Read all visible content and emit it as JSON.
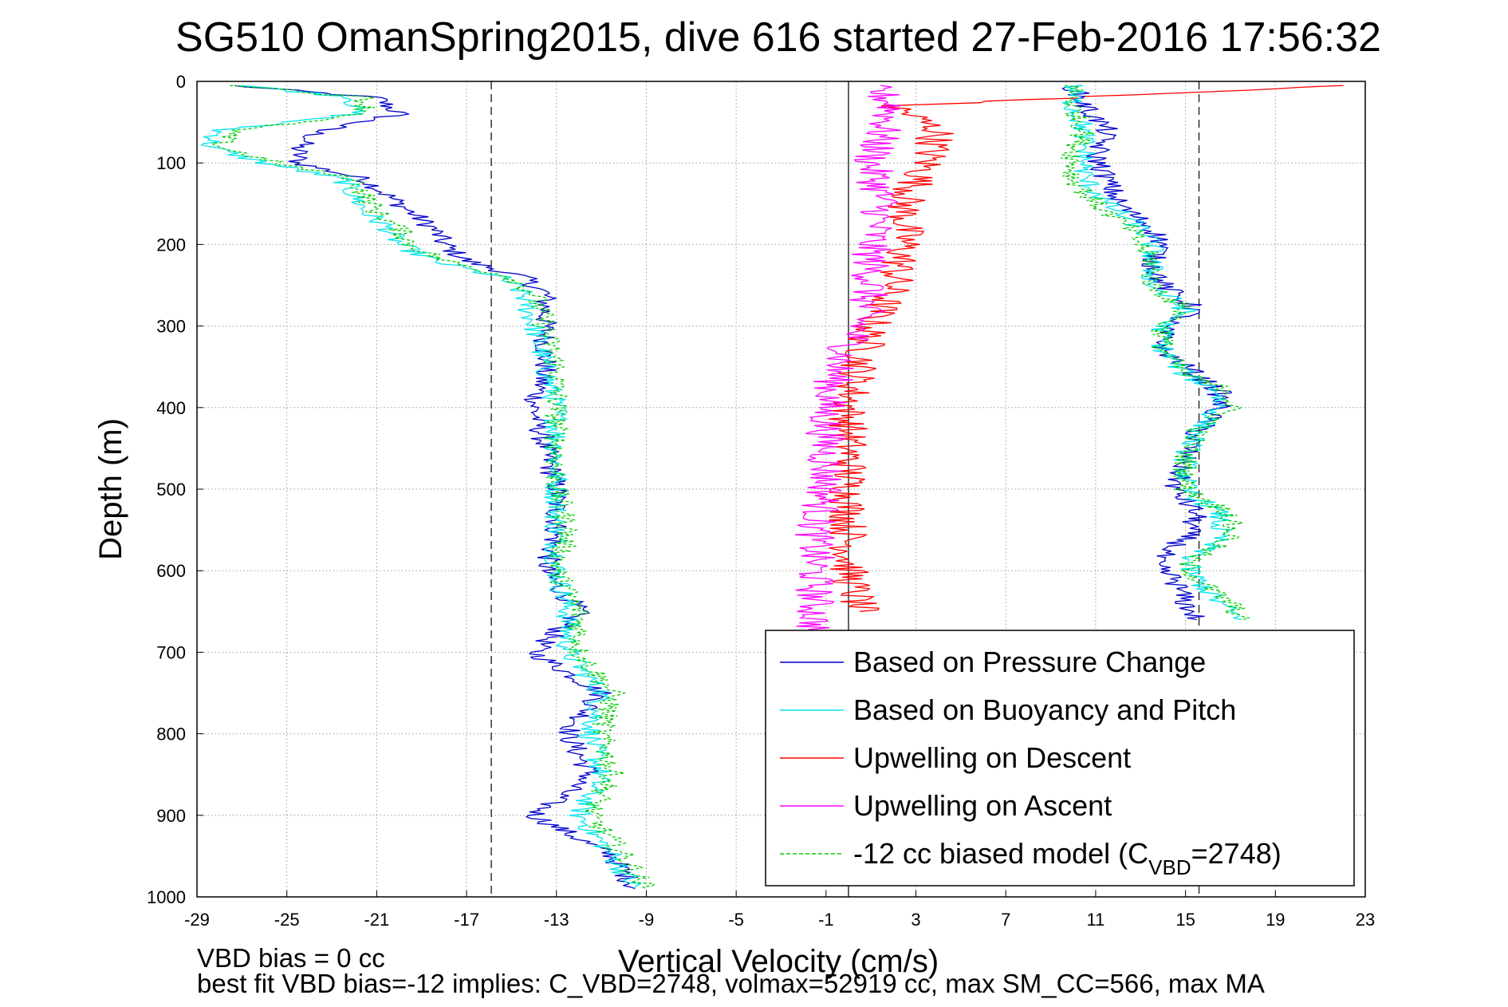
{
  "chart_data": {
    "type": "line",
    "title": "SG510 OmanSpring2015, dive 616 started 27-Feb-2016 17:56:32",
    "xlabel": "Vertical Velocity (cm/s)",
    "ylabel": "Depth (m)",
    "xlim": [
      -29,
      23
    ],
    "ylim": [
      0,
      1000
    ],
    "y_reversed": true,
    "grid": true,
    "xticks": [
      "-29",
      "-25",
      "-21",
      "-17",
      "-13",
      "-9",
      "-5",
      "-1",
      "3",
      "7",
      "11",
      "15",
      "19",
      "23"
    ],
    "yticks": [
      "0",
      "100",
      "200",
      "300",
      "400",
      "500",
      "600",
      "700",
      "800",
      "900",
      "1000"
    ],
    "reference_lines": [
      {
        "x": -15.9,
        "style": "dashed"
      },
      {
        "x": 0.0,
        "style": "solid"
      },
      {
        "x": 15.6,
        "style": "dashed"
      }
    ],
    "legend_position": "bottom-right",
    "series": [
      {
        "name": "Based on Pressure Change",
        "color": "#0000cc",
        "style": "solid",
        "depth": [
          5,
          20,
          40,
          60,
          80,
          100,
          120,
          140,
          160,
          180,
          200,
          220,
          240,
          260,
          300,
          350,
          400,
          450,
          500,
          550,
          600,
          650,
          700,
          750,
          800,
          850,
          900,
          950,
          990
        ],
        "values": [
          -27.5,
          -21.0,
          -20.0,
          -23.5,
          -24.5,
          -24.5,
          -21.5,
          -20.5,
          -19.5,
          -18.5,
          -18.0,
          -17.0,
          -14.5,
          -13.5,
          -13.5,
          -13.5,
          -14.0,
          -13.5,
          -13.0,
          -13.0,
          -13.5,
          -12.0,
          -14.0,
          -11.0,
          -12.5,
          -11.5,
          -14.0,
          -10.5,
          -9.5
        ]
      },
      {
        "name": "Based on Buoyancy and Pitch",
        "color": "#00e5ee",
        "style": "solid",
        "depth": [
          5,
          20,
          40,
          60,
          80,
          100,
          120,
          140,
          160,
          180,
          200,
          220,
          240,
          260,
          300,
          350,
          400,
          450,
          500,
          550,
          600,
          650,
          700,
          750,
          800,
          850,
          900,
          950,
          990
        ],
        "values": [
          -27.0,
          -22.0,
          -22.0,
          -28.0,
          -28.5,
          -26.0,
          -22.5,
          -22.0,
          -21.5,
          -20.5,
          -20.0,
          -18.5,
          -15.5,
          -14.5,
          -14.0,
          -13.5,
          -13.0,
          -13.0,
          -13.0,
          -13.0,
          -13.0,
          -12.5,
          -12.5,
          -11.0,
          -11.5,
          -11.0,
          -12.0,
          -10.5,
          -9.5
        ]
      },
      {
        "name": "Upwelling on Descent",
        "color": "#ff0000",
        "style": "solid",
        "depth": [
          5,
          30,
          60,
          100,
          150,
          200,
          250,
          300,
          350,
          400,
          450,
          500,
          550,
          600,
          650
        ],
        "values": [
          22.0,
          2.0,
          4.0,
          3.5,
          2.5,
          2.5,
          2.0,
          1.0,
          0.5,
          0.0,
          0.0,
          0.0,
          0.0,
          0.0,
          0.5
        ]
      },
      {
        "name": "Upwelling on Ascent",
        "color": "#ff00ff",
        "style": "solid",
        "depth": [
          5,
          30,
          60,
          100,
          150,
          200,
          250,
          300,
          350,
          400,
          450,
          500,
          550,
          600,
          650,
          700
        ],
        "values": [
          1.0,
          2.0,
          1.5,
          1.0,
          1.5,
          1.0,
          1.0,
          0.5,
          -0.5,
          -1.0,
          -1.0,
          -1.0,
          -1.5,
          -1.5,
          -1.5,
          -1.5
        ]
      },
      {
        "name": "-12 cc biased model (C_VBD=2748)",
        "color": "#00cc00",
        "style": "dashed",
        "depth": [
          5,
          20,
          40,
          60,
          80,
          100,
          120,
          140,
          160,
          180,
          200,
          220,
          240,
          260,
          300,
          350,
          400,
          450,
          500,
          550,
          600,
          650,
          700,
          750,
          800,
          850,
          900,
          950,
          990
        ],
        "values": [
          -27.0,
          -21.5,
          -21.5,
          -27.5,
          -28.0,
          -25.5,
          -22.0,
          -21.5,
          -21.0,
          -20.0,
          -19.5,
          -18.0,
          -15.0,
          -14.0,
          -13.5,
          -13.0,
          -13.0,
          -13.0,
          -13.0,
          -12.5,
          -13.0,
          -12.0,
          -12.0,
          -10.5,
          -11.0,
          -10.5,
          -11.5,
          -10.0,
          -9.0
        ]
      },
      {
        "name": "",
        "color": "#0000cc",
        "style": "solid",
        "depth": [
          5,
          30,
          60,
          90,
          120,
          150,
          180,
          200,
          220,
          250,
          280,
          300,
          330,
          360,
          380,
          400,
          430,
          460,
          500,
          530,
          560,
          590,
          610,
          640,
          660
        ],
        "values": [
          10.0,
          10.5,
          11.5,
          11.0,
          11.5,
          12.0,
          13.5,
          14.0,
          13.5,
          14.0,
          15.5,
          14.0,
          14.0,
          15.5,
          16.5,
          16.5,
          15.5,
          15.0,
          14.5,
          15.5,
          15.0,
          13.5,
          14.5,
          15.0,
          15.5
        ]
      },
      {
        "name": "",
        "color": "#00e5ee",
        "style": "solid",
        "depth": [
          5,
          30,
          60,
          90,
          120,
          150,
          180,
          200,
          220,
          250,
          280,
          300,
          330,
          360,
          380,
          400,
          430,
          460,
          500,
          530,
          560,
          590,
          610,
          640,
          660
        ],
        "values": [
          10.0,
          10.0,
          10.5,
          10.5,
          10.5,
          11.5,
          13.0,
          13.5,
          13.5,
          13.5,
          15.0,
          14.0,
          14.0,
          15.0,
          16.5,
          16.5,
          15.5,
          15.0,
          15.0,
          16.5,
          16.5,
          15.0,
          15.5,
          16.5,
          17.5
        ]
      },
      {
        "name": "",
        "color": "#00cc00",
        "style": "dashed",
        "depth": [
          5,
          30,
          60,
          90,
          120,
          150,
          180,
          200,
          220,
          250,
          280,
          300,
          330,
          360,
          380,
          400,
          430,
          460,
          500,
          530,
          560,
          590,
          610,
          640,
          660
        ],
        "values": [
          10.0,
          10.0,
          10.5,
          10.0,
          10.0,
          11.0,
          12.5,
          13.0,
          13.5,
          13.5,
          15.0,
          14.0,
          14.0,
          15.0,
          17.0,
          17.0,
          15.5,
          15.0,
          15.0,
          17.0,
          17.0,
          15.0,
          15.5,
          17.0,
          17.5
        ]
      }
    ]
  },
  "legend": {
    "items": [
      {
        "label": "Based on Pressure Change",
        "color": "#0000cc",
        "dashed": false
      },
      {
        "label": "Based on Buoyancy and Pitch",
        "color": "#00e5ee",
        "dashed": false
      },
      {
        "label": "Upwelling on Descent",
        "color": "#ff0000",
        "dashed": false
      },
      {
        "label": "Upwelling on Ascent",
        "color": "#ff00ff",
        "dashed": false
      },
      {
        "label": "-12 cc biased model (C",
        "sub": "VBD",
        "tail": "=2748)",
        "color": "#00cc00",
        "dashed": true
      }
    ]
  },
  "footer": {
    "line1": "VBD bias = 0 cc",
    "line2": "best fit VBD bias=-12 implies: C_VBD=2748, volmax=52919 cc, max SM_CC=566, max MA"
  }
}
